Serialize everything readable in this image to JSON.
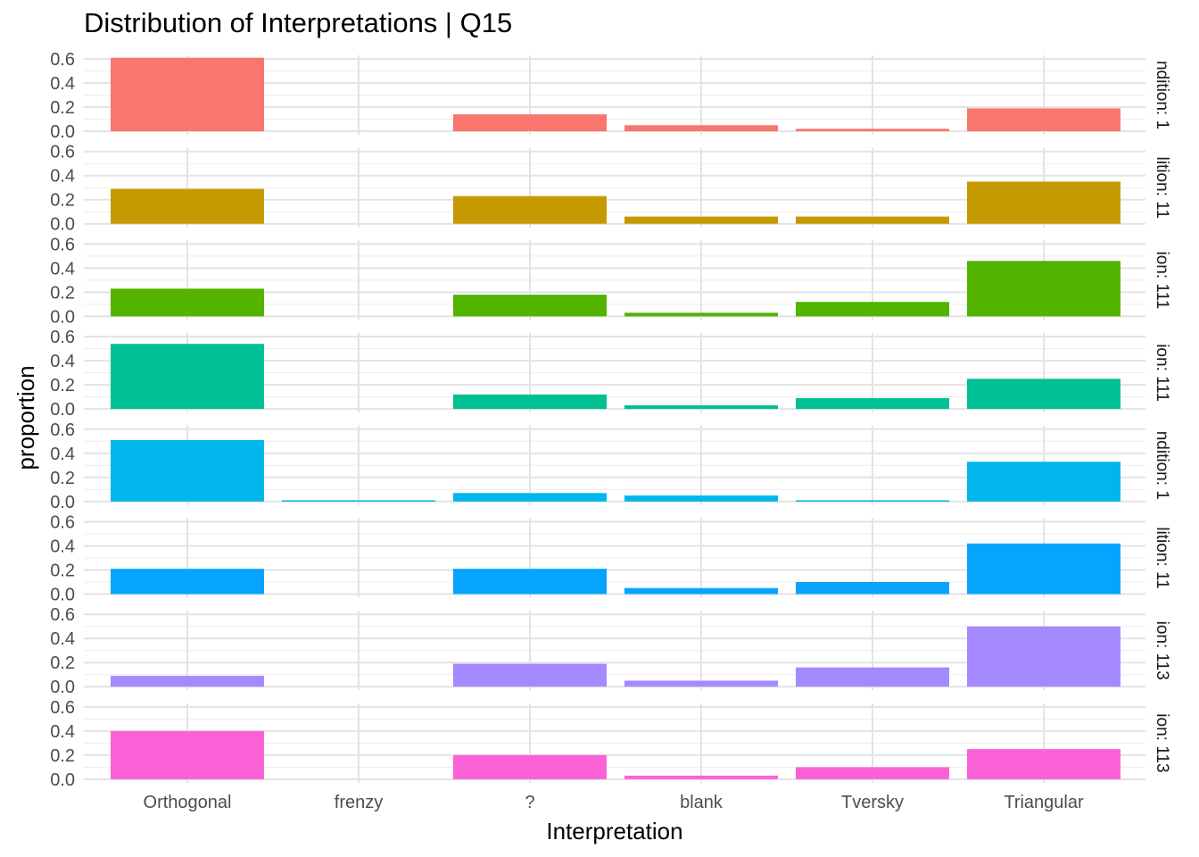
{
  "chart_data": {
    "type": "bar",
    "title": "Distribution of Interpretations | Q15",
    "xlabel": "Interpretation",
    "ylabel": "proportion",
    "categories": [
      "Orthogonal",
      "frenzy",
      "?",
      "blank",
      "Tversky",
      "Triangular"
    ],
    "ylim": [
      0,
      0.6
    ],
    "yticks": [
      "0.0",
      "0.2",
      "0.4",
      "0.6"
    ],
    "grid": true,
    "facets": [
      {
        "strip": "ndition: 1",
        "color": "#F8766D",
        "values": [
          0.61,
          0.0,
          0.14,
          0.05,
          0.02,
          0.19
        ]
      },
      {
        "strip": "lition: 11",
        "color": "#C49A00",
        "values": [
          0.29,
          0.0,
          0.23,
          0.06,
          0.06,
          0.35
        ]
      },
      {
        "strip": "ion: 111",
        "color": "#53B400",
        "values": [
          0.23,
          0.0,
          0.18,
          0.03,
          0.12,
          0.46
        ]
      },
      {
        "strip": "ion: 111",
        "color": "#00C094",
        "values": [
          0.54,
          0.0,
          0.12,
          0.03,
          0.09,
          0.25
        ]
      },
      {
        "strip": "ndition: 1",
        "color": "#00B6EB",
        "values": [
          0.51,
          0.01,
          0.07,
          0.05,
          0.01,
          0.33
        ]
      },
      {
        "strip": "lition: 11",
        "color": "#06A4FF",
        "values": [
          0.21,
          0.0,
          0.21,
          0.05,
          0.1,
          0.42
        ]
      },
      {
        "strip": "ion: 113",
        "color": "#A58AFF",
        "values": [
          0.09,
          0.0,
          0.19,
          0.05,
          0.16,
          0.5
        ]
      },
      {
        "strip": "ion: 113",
        "color": "#FB61D7",
        "values": [
          0.4,
          0.0,
          0.2,
          0.03,
          0.1,
          0.25
        ]
      }
    ]
  }
}
